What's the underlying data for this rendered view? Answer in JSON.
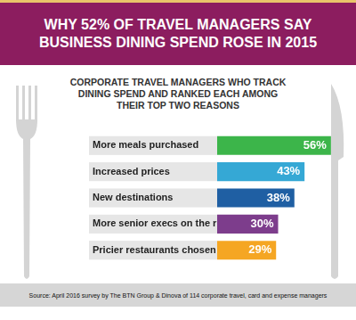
{
  "chart_data": {
    "type": "bar",
    "title": "WHY 52% OF TRAVEL MANAGERS SAY BUSINESS DINING SPEND ROSE IN 2015",
    "subtitle": "CORPORATE TRAVEL MANAGERS WHO TRACK DINING SPEND AND RANKED EACH AMONG THEIR TOP TWO REASONS",
    "source": "Source: April 2016 survey by The BTN Group & Dinova of 114 corporate travel, card and expense managers",
    "categories": [
      "More meals purchased",
      "Increased prices",
      "New destinations",
      "More senior execs on the road",
      "Pricier restaurants chosen"
    ],
    "values": [
      56,
      43,
      38,
      30,
      29
    ],
    "value_labels": [
      "56%",
      "43%",
      "38%",
      "30%",
      "29%"
    ],
    "colors": [
      "#3cb54a",
      "#35a8d5",
      "#1f5fa3",
      "#7d3d8c",
      "#f5a623"
    ],
    "orientation": "horizontal",
    "data_labels": true,
    "tick_labels": "y",
    "grid": false,
    "xlim": [
      0,
      60
    ]
  }
}
